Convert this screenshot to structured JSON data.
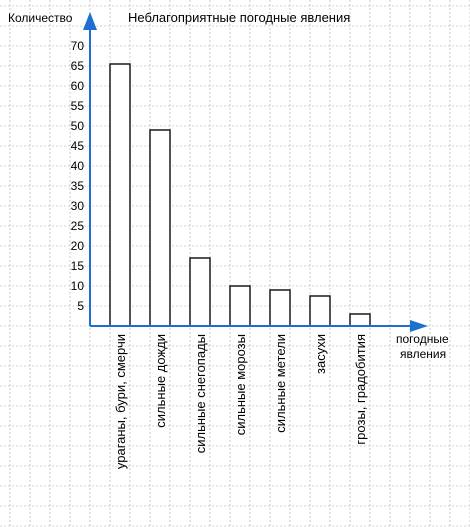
{
  "chart_data": {
    "type": "bar",
    "title": "Неблагоприятные погодные явления",
    "ylabel": "Количество",
    "xlabel": [
      "погодные",
      "явления"
    ],
    "categories": [
      "ураганы, бури, смерчи",
      "сильные дожди",
      "сильные снегопады",
      "сильные морозы",
      "сильные метели",
      "засухи",
      "грозы, градобития"
    ],
    "values": [
      65.5,
      49,
      17,
      10,
      9,
      7.5,
      3
    ],
    "ylim": [
      0,
      70
    ],
    "yticks": [
      5,
      10,
      15,
      20,
      25,
      30,
      35,
      40,
      45,
      50,
      55,
      60,
      65,
      70
    ],
    "grid": true,
    "colors": {
      "grid": "#aaaaaa",
      "bar_stroke": "#1a1a1a",
      "axis": "#1f6fd1",
      "text": "#000000"
    }
  }
}
